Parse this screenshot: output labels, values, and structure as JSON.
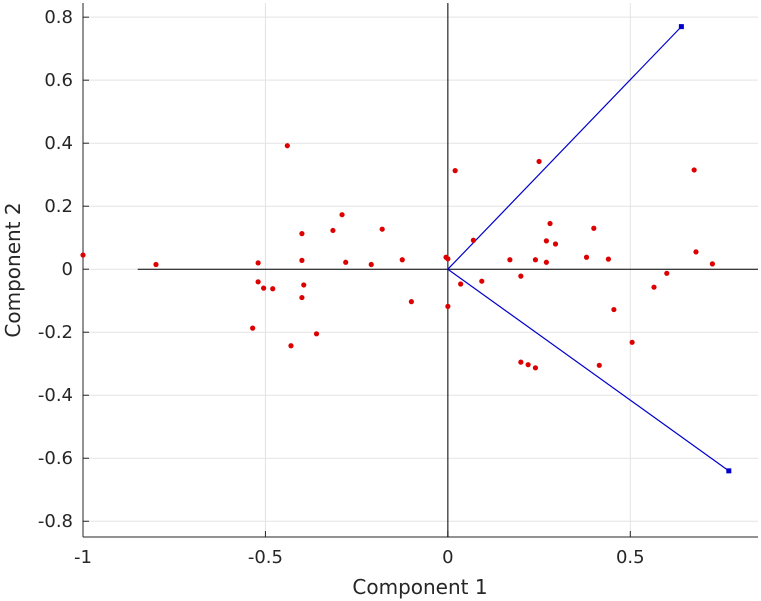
{
  "chart_data": {
    "type": "scatter",
    "title": "",
    "xlabel": "Component 1",
    "ylabel": "Component 2",
    "xlim": [
      -1,
      0.85
    ],
    "ylim": [
      -0.85,
      0.845
    ],
    "grid": true,
    "x_ticks": [
      {
        "value": -1,
        "label": "-1"
      },
      {
        "value": -0.5,
        "label": "-0.5"
      },
      {
        "value": 0,
        "label": "0"
      },
      {
        "value": 0.5,
        "label": "0.5"
      }
    ],
    "y_ticks": [
      {
        "value": 0.8,
        "label": "0.8"
      },
      {
        "value": 0.6,
        "label": "0.6"
      },
      {
        "value": 0.4,
        "label": "0.4"
      },
      {
        "value": 0.2,
        "label": "0.2"
      },
      {
        "value": 0,
        "label": "0"
      },
      {
        "value": -0.2,
        "label": "-0.2"
      },
      {
        "value": -0.4,
        "label": "-0.4"
      },
      {
        "value": -0.6,
        "label": "-0.6"
      },
      {
        "value": -0.8,
        "label": "-0.8"
      }
    ],
    "zero_lines": {
      "x_from": -0.85,
      "x_to": 0.85,
      "y_from": -0.85,
      "y_to": 0.845,
      "color": "#000000"
    },
    "vectors": {
      "color": "#0000cc",
      "items": [
        {
          "x": 0.64,
          "y": 0.77
        },
        {
          "x": 0.77,
          "y": -0.64
        }
      ]
    },
    "points": {
      "color": "#dd0000",
      "items": [
        [
          -1.0,
          0.045
        ],
        [
          -0.8,
          0.015
        ],
        [
          -0.52,
          0.02
        ],
        [
          -0.52,
          -0.04
        ],
        [
          -0.505,
          -0.06
        ],
        [
          -0.48,
          -0.062
        ],
        [
          -0.535,
          -0.187
        ],
        [
          -0.44,
          0.392
        ],
        [
          -0.43,
          -0.243
        ],
        [
          -0.4,
          0.113
        ],
        [
          -0.4,
          0.028
        ],
        [
          -0.395,
          -0.05
        ],
        [
          -0.4,
          -0.09
        ],
        [
          -0.36,
          -0.205
        ],
        [
          -0.315,
          0.123
        ],
        [
          -0.29,
          0.173
        ],
        [
          -0.28,
          0.022
        ],
        [
          -0.18,
          0.127
        ],
        [
          -0.21,
          0.015
        ],
        [
          -0.125,
          0.03
        ],
        [
          -0.1,
          -0.103
        ],
        [
          -0.005,
          0.038
        ],
        [
          0.0,
          0.033
        ],
        [
          0.0,
          -0.118
        ],
        [
          0.02,
          0.313
        ],
        [
          0.035,
          -0.047
        ],
        [
          0.07,
          0.092
        ],
        [
          0.093,
          -0.038
        ],
        [
          0.17,
          0.03
        ],
        [
          0.2,
          -0.022
        ],
        [
          0.2,
          -0.295
        ],
        [
          0.22,
          -0.303
        ],
        [
          0.24,
          -0.313
        ],
        [
          0.24,
          0.03
        ],
        [
          0.25,
          0.342
        ],
        [
          0.27,
          0.09
        ],
        [
          0.27,
          0.022
        ],
        [
          0.28,
          0.145
        ],
        [
          0.295,
          0.08
        ],
        [
          0.38,
          0.038
        ],
        [
          0.4,
          0.13
        ],
        [
          0.415,
          -0.305
        ],
        [
          0.44,
          0.032
        ],
        [
          0.455,
          -0.128
        ],
        [
          0.505,
          -0.232
        ],
        [
          0.565,
          -0.057
        ],
        [
          0.6,
          -0.013
        ],
        [
          0.675,
          0.315
        ],
        [
          0.68,
          0.055
        ],
        [
          0.725,
          0.017
        ]
      ]
    }
  }
}
